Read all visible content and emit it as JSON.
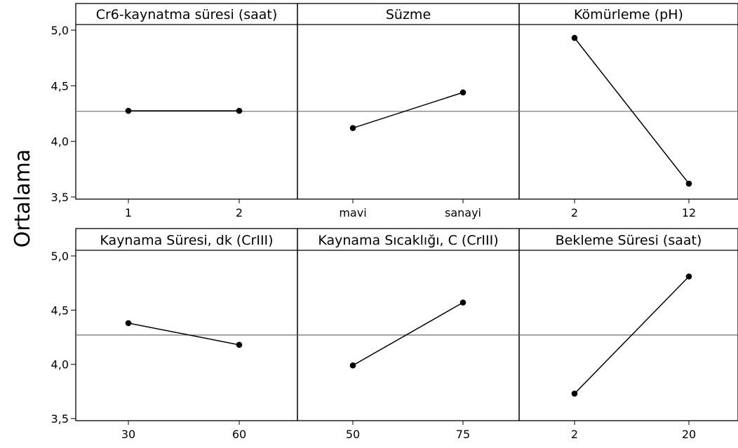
{
  "chart_data": {
    "type": "line",
    "ylabel": "Ortalama",
    "ylim": [
      3.5,
      5.0
    ],
    "yticks": [
      "3,5",
      "4,0",
      "4,5",
      "5,0"
    ],
    "overall_mean": 4.27,
    "panels": [
      {
        "title": "Cr6-kaynatma süresi (saat)",
        "categories": [
          "1",
          "2"
        ],
        "values": [
          4.275,
          4.275
        ]
      },
      {
        "title": "Süzme",
        "categories": [
          "mavi",
          "sanayi"
        ],
        "values": [
          4.12,
          4.44
        ]
      },
      {
        "title": "Kömürleme (pH)",
        "categories": [
          "2",
          "12"
        ],
        "values": [
          4.93,
          3.62
        ]
      },
      {
        "title": "Kaynama Süresi, dk (CrIII)",
        "categories": [
          "30",
          "60"
        ],
        "values": [
          4.38,
          4.18
        ]
      },
      {
        "title": "Kaynama Sıcaklığı, C (CrIII)",
        "categories": [
          "50",
          "75"
        ],
        "values": [
          3.99,
          4.57
        ]
      },
      {
        "title": "Bekleme Süresi (saat)",
        "categories": [
          "2",
          "20"
        ],
        "values": [
          3.73,
          4.81
        ]
      }
    ]
  }
}
